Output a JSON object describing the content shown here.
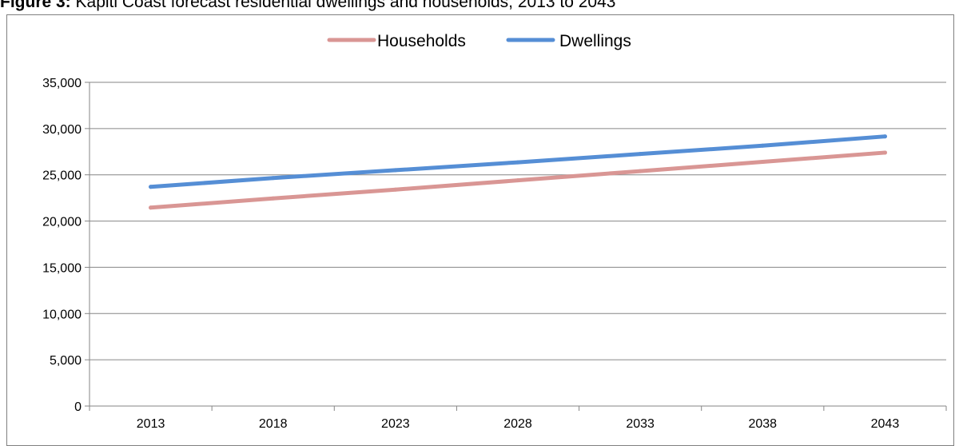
{
  "caption": {
    "label": "Figure 3:",
    "text": "Kapiti Coast forecast residential dwellings and households, 2013 to 2043"
  },
  "chart_data": {
    "type": "line",
    "title": "",
    "xlabel": "",
    "ylabel": "",
    "categories": [
      "2013",
      "2018",
      "2023",
      "2028",
      "2033",
      "2038",
      "2043"
    ],
    "ylim": [
      0,
      35000
    ],
    "yticks": [
      0,
      5000,
      10000,
      15000,
      20000,
      25000,
      30000,
      35000
    ],
    "ytick_labels": [
      "0",
      "5,000",
      "10,000",
      "15,000",
      "20,000",
      "25,000",
      "30,000",
      "35,000"
    ],
    "grid": true,
    "legend_position": "top",
    "series": [
      {
        "name": "Households",
        "color": "#d99694",
        "values": [
          21450,
          22450,
          23400,
          24400,
          25400,
          26400,
          27400
        ]
      },
      {
        "name": "Dwellings",
        "color": "#558ed5",
        "values": [
          23700,
          24650,
          25500,
          26350,
          27250,
          28150,
          29150
        ]
      }
    ]
  }
}
